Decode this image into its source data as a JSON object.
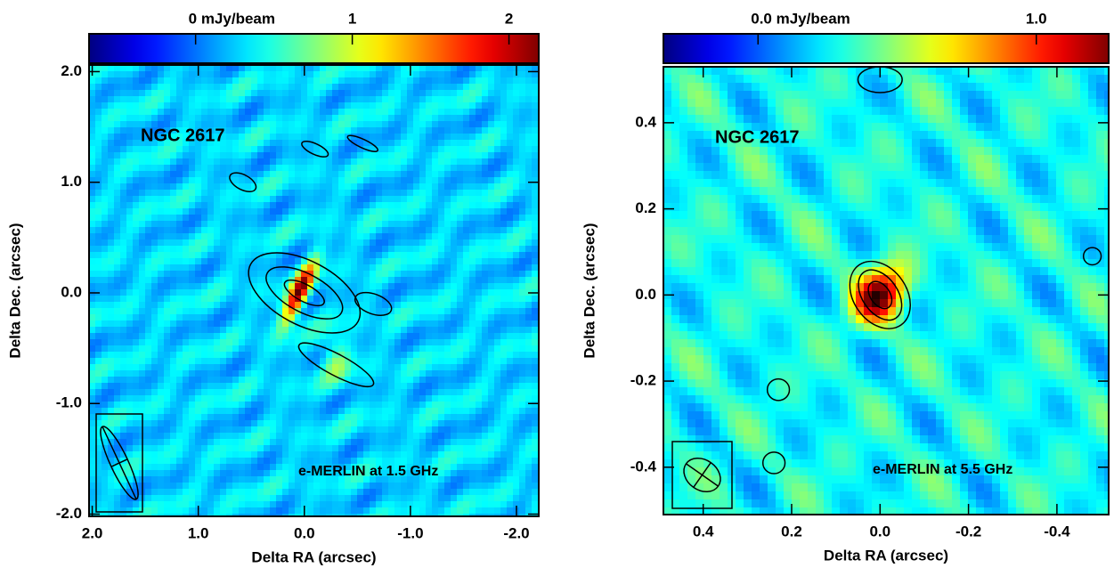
{
  "chart_data": [
    {
      "type": "image",
      "annotation": "NGC 2617",
      "caption": "e-MERLIN at 1.5 GHz",
      "xlabel": "Delta RA (arcsec)",
      "ylabel": "Delta Dec. (arcsec)",
      "xlim": [
        2.03,
        -2.21
      ],
      "ylim": [
        -2.02,
        2.06
      ],
      "xticks": [
        {
          "value": 2,
          "label": "2.0"
        },
        {
          "value": 1,
          "label": "1.0"
        },
        {
          "value": 0,
          "label": "0.0"
        },
        {
          "value": -1,
          "label": "-1.0"
        },
        {
          "value": -2,
          "label": "-2.0"
        }
      ],
      "yticks": [
        {
          "value": 2,
          "label": "2.0"
        },
        {
          "value": 1,
          "label": "1.0"
        },
        {
          "value": 0,
          "label": "0.0"
        },
        {
          "value": -1,
          "label": "-1.0"
        },
        {
          "value": -2,
          "label": "-2.0"
        }
      ],
      "colorbar": {
        "lim": [
          -0.68,
          2.19
        ],
        "ticks": [
          {
            "value": 0,
            "label": "0 mJy/beam"
          },
          1,
          2
        ]
      }
    },
    {
      "type": "image",
      "annotation": "NGC 2617",
      "caption": "e-MERLIN at 5.5 GHz",
      "xlabel": "Delta RA (arcsec)",
      "ylabel": "Delta Dec. (arcsec)",
      "xlim": [
        0.49,
        -0.517
      ],
      "ylim": [
        -0.51,
        0.53
      ],
      "xticks": [
        0.4,
        0.2,
        {
          "value": 0,
          "label": "0.0"
        },
        -0.2,
        -0.4
      ],
      "yticks": [
        0.4,
        0.2,
        {
          "value": 0,
          "label": "0.0"
        },
        -0.2,
        -0.4
      ],
      "colorbar": {
        "lim": [
          -0.34,
          1.26
        ],
        "ticks": [
          {
            "value": 0,
            "label": "0.0 mJy/beam"
          },
          {
            "value": 1,
            "label": "1.0"
          }
        ]
      }
    }
  ]
}
